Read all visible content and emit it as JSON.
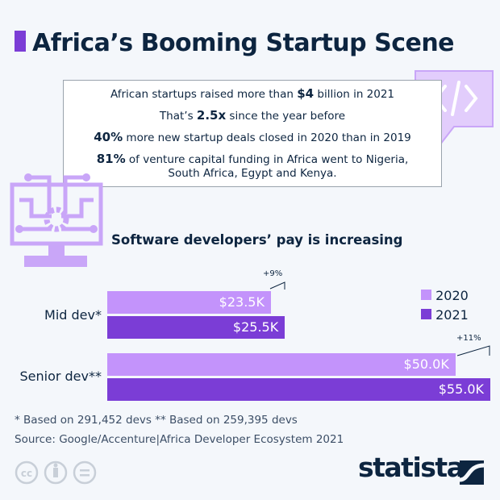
{
  "title": "Africa’s Booming Startup Scene",
  "facts": [
    {
      "pre": "African startups raised more than ",
      "bold": "$4",
      "post": " billion in 2021"
    },
    {
      "pre": "That’s ",
      "bold": "2.5x",
      "post": " since the year before"
    },
    {
      "pre": "",
      "bold": "40%",
      "post": " more new startup deals closed in 2020 than in 2019"
    },
    {
      "pre": "",
      "bold": "81%",
      "post": " of venture capital funding in Africa went to Nigeria, South Africa, Egypt and Kenya."
    }
  ],
  "icons": {
    "code": "code-brackets-icon",
    "monitor": "monitor-gear-icon"
  },
  "colors": {
    "2020": "#c393fb",
    "2021": "#7b3dd6",
    "accent": "#7b3dd6"
  },
  "chart_data": {
    "type": "bar",
    "orientation": "horizontal",
    "title": "Software developers’ pay is increasing",
    "categories": [
      "Mid dev*",
      "Senior dev**"
    ],
    "series": [
      {
        "name": "2020",
        "values": [
          23.5,
          50.0
        ],
        "labels": [
          "$23.5K",
          "$50.0K"
        ]
      },
      {
        "name": "2021",
        "values": [
          25.5,
          55.0
        ],
        "labels": [
          "$25.5K",
          "$55.0K"
        ]
      }
    ],
    "annotations": [
      "+9%",
      "+11%"
    ],
    "unit": "thousand USD",
    "legend": "right",
    "grid": false
  },
  "footnotes": {
    "note": "* Based on 291,452 devs     ** Based on 259,395 devs",
    "source": "Source: Google/Accenture|Africa Developer Ecosystem 2021"
  },
  "brand": "statista"
}
